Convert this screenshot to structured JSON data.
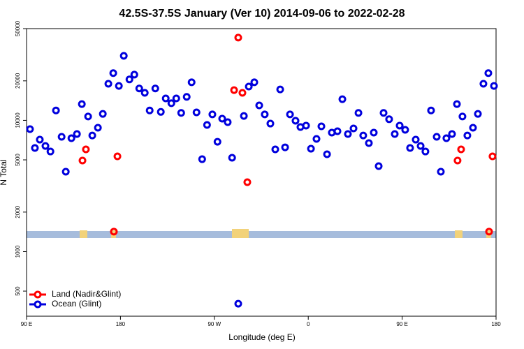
{
  "chart_data": {
    "type": "scatter",
    "title": "42.5S-37.5S January (Ver 10)   2014-09-06 to 2022-02-28",
    "xlabel": "Longitude (deg E)",
    "ylabel": "N Total",
    "xlim": [
      90,
      540
    ],
    "xticks": [
      {
        "value": 90,
        "label": "90 E"
      },
      180,
      {
        "value": 270,
        "label": "90 W"
      },
      {
        "value": 360,
        "label": "0"
      },
      {
        "value": 450,
        "label": "90 E"
      },
      {
        "value": 540,
        "label": "180"
      }
    ],
    "ylim": [
      322,
      50000
    ],
    "ylog": true,
    "yticks": [
      500,
      1000,
      2000,
      5000,
      10000,
      20000,
      50000
    ],
    "legend": "bottomleft",
    "series": [
      {
        "name": "Land (Nadir&Glint)",
        "color": "#ff0000",
        "x": [
          143.6,
          146.9,
          173.7,
          177.1,
          288.9,
          292.9,
          296.9,
          301.6,
          503.1,
          506.5,
          533.3,
          536.6
        ],
        "values": [
          4940,
          6010,
          1420,
          5320,
          17000,
          42700,
          16200,
          3380,
          4940,
          6010,
          1420,
          5320
        ]
      },
      {
        "name": "Ocean (Glint)",
        "color": "#0000dd",
        "x": [
          93.3,
          98.0,
          102.7,
          108.1,
          112.9,
          118.2,
          123.6,
          127.6,
          133.0,
          138.3,
          143.0,
          149.0,
          153.0,
          158.4,
          163.1,
          168.4,
          173.1,
          178.5,
          183.2,
          188.6,
          193.3,
          198.0,
          203.3,
          208.0,
          213.4,
          218.7,
          223.4,
          228.8,
          233.5,
          238.2,
          243.5,
          248.2,
          252.9,
          258.3,
          263.0,
          268.1,
          273.0,
          277.5,
          282.8,
          287.0,
          292.9,
          298.3,
          303.0,
          308.3,
          313.0,
          318.3,
          323.7,
          328.4,
          333.1,
          337.8,
          342.5,
          347.8,
          352.5,
          357.9,
          362.6,
          367.9,
          372.6,
          378.0,
          382.6,
          388.0,
          392.7,
          398.0,
          403.4,
          408.1,
          412.7,
          418.1,
          422.8,
          427.5,
          432.2,
          437.5,
          442.9,
          447.6,
          452.9,
          457.6,
          463.0,
          467.7,
          472.3,
          477.7,
          483.1,
          487.1,
          492.4,
          497.8,
          502.5,
          507.8,
          512.5,
          517.9,
          522.6,
          527.9,
          532.6,
          538.0
        ],
        "values": [
          8570,
          6160,
          7130,
          6380,
          5790,
          11900,
          7490,
          4060,
          7310,
          7870,
          13300,
          10700,
          7670,
          8790,
          11200,
          19000,
          22900,
          18300,
          31000,
          20500,
          22300,
          17500,
          16200,
          11900,
          17500,
          11600,
          14700,
          13500,
          14700,
          11400,
          15100,
          19500,
          11500,
          5060,
          9230,
          11100,
          6870,
          10300,
          9690,
          5190,
          401,
          10800,
          18100,
          19500,
          13000,
          11100,
          9450,
          6010,
          17200,
          6230,
          11100,
          9930,
          8890,
          9120,
          6080,
          7220,
          9000,
          5520,
          8060,
          8260,
          14500,
          7870,
          8680,
          11400,
          7670,
          6710,
          8060,
          4480,
          11400,
          10200,
          7870,
          9120,
          8470,
          6160,
          7130,
          6380,
          5790,
          11900,
          7490,
          4060,
          7310,
          7870,
          13300,
          10700,
          7670,
          8790,
          11200,
          19000,
          22900,
          18300
        ]
      }
    ]
  }
}
